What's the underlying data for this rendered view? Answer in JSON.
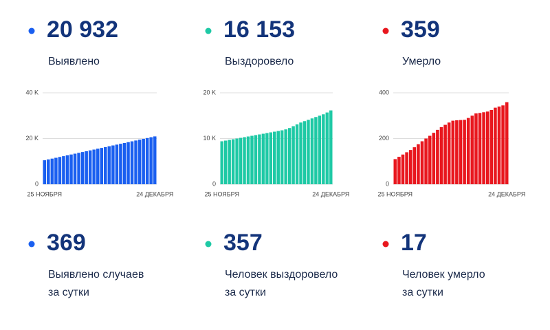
{
  "stats": [
    {
      "value": "20 932",
      "label": "Выявлено"
    },
    {
      "value": "16 153",
      "label": "Выздоровело"
    },
    {
      "value": "359",
      "label": "Умерло"
    }
  ],
  "daily": [
    {
      "value": "369",
      "lines": [
        "Выявлено случаев",
        "за сутки"
      ]
    },
    {
      "value": "357",
      "lines": [
        "Человек выздоровело",
        "за сутки"
      ]
    },
    {
      "value": "17",
      "lines": [
        "Человек умерло",
        "за сутки"
      ]
    }
  ],
  "chart_data": [
    {
      "type": "bar",
      "color": "#1a5ff0",
      "categories": [
        "25 НОЯБРЯ",
        null,
        null,
        null,
        null,
        null,
        null,
        null,
        null,
        null,
        null,
        null,
        null,
        null,
        null,
        null,
        null,
        null,
        null,
        null,
        null,
        null,
        null,
        null,
        null,
        null,
        null,
        null,
        null,
        "24 ДЕКАБРЯ"
      ],
      "values": [
        10500,
        10860,
        11220,
        11580,
        11940,
        12300,
        12660,
        13020,
        13380,
        13740,
        14100,
        14460,
        14820,
        15180,
        15540,
        15900,
        16260,
        16620,
        16980,
        17340,
        17700,
        18060,
        18420,
        18780,
        19140,
        19500,
        19860,
        20220,
        20580,
        20932
      ],
      "ylim": [
        0,
        40000
      ],
      "yticks": [
        0,
        {
          "value": 20000,
          "label": "20 K"
        },
        {
          "value": 40000,
          "label": "40 K"
        }
      ],
      "grid": true
    },
    {
      "type": "bar",
      "color": "#1ec9a5",
      "categories": [
        "25 НОЯБРЯ",
        null,
        null,
        null,
        null,
        null,
        null,
        null,
        null,
        null,
        null,
        null,
        null,
        null,
        null,
        null,
        null,
        null,
        null,
        null,
        null,
        null,
        null,
        null,
        null,
        null,
        null,
        null,
        null,
        "24 ДЕКАБРЯ"
      ],
      "values": [
        9400,
        9550,
        9700,
        9850,
        10000,
        10150,
        10300,
        10450,
        10600,
        10750,
        10900,
        11050,
        11200,
        11350,
        11500,
        11650,
        11800,
        12000,
        12300,
        12700,
        13100,
        13500,
        13800,
        14100,
        14400,
        14700,
        15000,
        15300,
        15700,
        16153
      ],
      "ylim": [
        0,
        20000
      ],
      "yticks": [
        0,
        {
          "value": 10000,
          "label": "10 K"
        },
        {
          "value": 20000,
          "label": "20 K"
        }
      ],
      "grid": true
    },
    {
      "type": "bar",
      "color": "#e8171e",
      "categories": [
        "25 НОЯБРЯ",
        null,
        null,
        null,
        null,
        null,
        null,
        null,
        null,
        null,
        null,
        null,
        null,
        null,
        null,
        null,
        null,
        null,
        null,
        null,
        null,
        null,
        null,
        null,
        null,
        null,
        null,
        null,
        null,
        "24 ДЕКАБРЯ"
      ],
      "values": [
        110,
        120,
        130,
        140,
        150,
        162,
        175,
        188,
        200,
        212,
        225,
        238,
        250,
        260,
        270,
        278,
        280,
        281,
        282,
        290,
        300,
        310,
        312,
        315,
        318,
        325,
        335,
        340,
        345,
        359
      ],
      "ylim": [
        0,
        400
      ],
      "yticks": [
        0,
        200,
        400
      ],
      "grid": true
    }
  ]
}
